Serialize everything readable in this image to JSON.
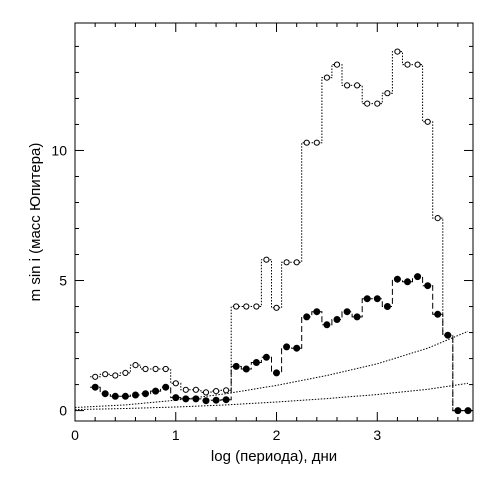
{
  "chart_data": {
    "type": "line",
    "title": "",
    "xlabel": "log (периода), дни",
    "ylabel": "m sin i (масс Юпитера)",
    "xlim": [
      0,
      3.95
    ],
    "ylim": [
      -0.4,
      14.9
    ],
    "grid": false,
    "xticks": [
      0,
      1,
      2,
      3
    ],
    "yticks": [
      0,
      5,
      10
    ],
    "xtick_labels": [
      "0",
      "1",
      "2",
      "3"
    ],
    "ytick_labels": [
      "0",
      "5",
      "10"
    ],
    "series": [
      {
        "marker": "open-circle",
        "line_style": "dotted-step",
        "points": [
          [
            0.2,
            1.3
          ],
          [
            0.3,
            1.4
          ],
          [
            0.4,
            1.35
          ],
          [
            0.5,
            1.45
          ],
          [
            0.6,
            1.75
          ],
          [
            0.7,
            1.6
          ],
          [
            0.8,
            1.6
          ],
          [
            0.9,
            1.6
          ],
          [
            1.0,
            1.05
          ],
          [
            1.1,
            0.8
          ],
          [
            1.2,
            0.8
          ],
          [
            1.3,
            0.7
          ],
          [
            1.4,
            0.75
          ],
          [
            1.5,
            0.78
          ],
          [
            1.6,
            4.0
          ],
          [
            1.7,
            4.0
          ],
          [
            1.8,
            4.0
          ],
          [
            1.9,
            5.8
          ],
          [
            2.0,
            3.95
          ],
          [
            2.1,
            5.7
          ],
          [
            2.2,
            5.7
          ],
          [
            2.3,
            10.3
          ],
          [
            2.4,
            10.3
          ],
          [
            2.5,
            12.8
          ],
          [
            2.6,
            13.3
          ],
          [
            2.7,
            12.5
          ],
          [
            2.8,
            12.5
          ],
          [
            2.9,
            11.8
          ],
          [
            3.0,
            11.8
          ],
          [
            3.1,
            12.2
          ],
          [
            3.2,
            13.8
          ],
          [
            3.3,
            13.3
          ],
          [
            3.4,
            13.3
          ],
          [
            3.5,
            11.1
          ],
          [
            3.6,
            7.4
          ],
          [
            3.7,
            2.9
          ],
          [
            3.8,
            0.0
          ],
          [
            3.9,
            0.0
          ]
        ]
      },
      {
        "marker": "filled-circle",
        "line_style": "dashed-step",
        "points": [
          [
            0.2,
            0.9
          ],
          [
            0.3,
            0.65
          ],
          [
            0.4,
            0.55
          ],
          [
            0.5,
            0.55
          ],
          [
            0.6,
            0.6
          ],
          [
            0.7,
            0.65
          ],
          [
            0.8,
            0.75
          ],
          [
            0.9,
            0.9
          ],
          [
            1.0,
            0.5
          ],
          [
            1.1,
            0.45
          ],
          [
            1.2,
            0.45
          ],
          [
            1.3,
            0.38
          ],
          [
            1.4,
            0.4
          ],
          [
            1.5,
            0.42
          ],
          [
            1.6,
            1.7
          ],
          [
            1.7,
            1.6
          ],
          [
            1.8,
            1.85
          ],
          [
            1.9,
            2.05
          ],
          [
            2.0,
            1.45
          ],
          [
            2.1,
            2.45
          ],
          [
            2.2,
            2.4
          ],
          [
            2.3,
            3.6
          ],
          [
            2.4,
            3.8
          ],
          [
            2.5,
            3.3
          ],
          [
            2.6,
            3.5
          ],
          [
            2.7,
            3.8
          ],
          [
            2.8,
            3.6
          ],
          [
            2.9,
            4.3
          ],
          [
            3.0,
            4.3
          ],
          [
            3.1,
            4.0
          ],
          [
            3.2,
            5.05
          ],
          [
            3.3,
            4.95
          ],
          [
            3.4,
            5.15
          ],
          [
            3.5,
            4.8
          ],
          [
            3.6,
            3.7
          ],
          [
            3.7,
            2.9
          ],
          [
            3.8,
            0.0
          ],
          [
            3.9,
            0.0
          ]
        ]
      },
      {
        "line_style": "dotted-curve",
        "x": [
          0.0,
          0.5,
          1.0,
          1.5,
          2.0,
          2.5,
          3.0,
          3.5,
          3.9
        ],
        "y": [
          0.12,
          0.22,
          0.4,
          0.65,
          0.97,
          1.35,
          1.8,
          2.4,
          3.05
        ]
      },
      {
        "line_style": "dotted-curve",
        "x": [
          0.0,
          0.5,
          1.0,
          1.5,
          2.0,
          2.5,
          3.0,
          3.5,
          3.9
        ],
        "y": [
          0.04,
          0.08,
          0.14,
          0.22,
          0.33,
          0.46,
          0.62,
          0.82,
          1.05
        ]
      }
    ]
  }
}
